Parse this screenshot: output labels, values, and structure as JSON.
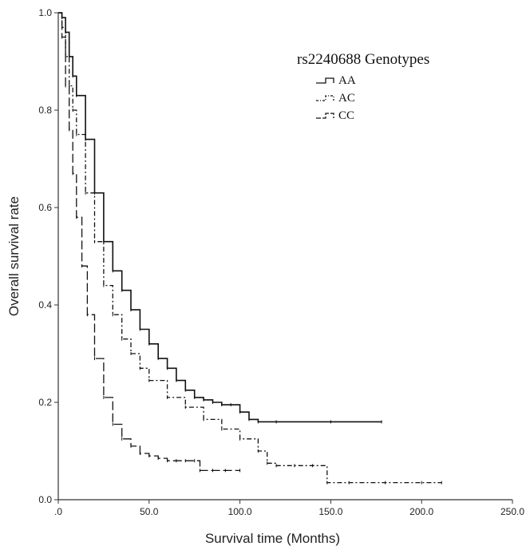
{
  "chart_data": {
    "type": "line",
    "title": "",
    "xlabel": "Survival time (Months)",
    "ylabel": "Overall survival rate",
    "xlim": [
      0,
      250
    ],
    "ylim": [
      0,
      1.0
    ],
    "x_ticks": [
      {
        "value": 0,
        "label": ".0"
      },
      {
        "value": 50,
        "label": "50.0"
      },
      {
        "value": 100,
        "label": "100.0"
      },
      {
        "value": 150,
        "label": "150.0"
      },
      {
        "value": 200,
        "label": "200.0"
      },
      {
        "value": 250,
        "label": "250.0"
      }
    ],
    "y_ticks": [
      {
        "value": 0,
        "label": "0.0"
      },
      {
        "value": 0.2,
        "label": "0.2"
      },
      {
        "value": 0.4,
        "label": "0.4"
      },
      {
        "value": 0.6,
        "label": "0.6"
      },
      {
        "value": 0.8,
        "label": "0.8"
      },
      {
        "value": 1.0,
        "label": "1.0"
      }
    ],
    "grid": false,
    "legend": {
      "title": "rs2240688 Genotypes",
      "placement": "top-right"
    },
    "series": [
      {
        "name": "AA",
        "dash": "solid",
        "x": [
          0,
          2,
          4,
          6,
          8,
          10,
          15,
          20,
          25,
          30,
          35,
          40,
          45,
          50,
          55,
          60,
          65,
          70,
          75,
          80,
          85,
          90,
          95,
          100,
          105,
          110,
          120,
          150,
          178
        ],
        "y": [
          1.0,
          0.99,
          0.96,
          0.91,
          0.87,
          0.83,
          0.74,
          0.63,
          0.53,
          0.47,
          0.43,
          0.39,
          0.35,
          0.32,
          0.29,
          0.27,
          0.245,
          0.225,
          0.21,
          0.205,
          0.2,
          0.195,
          0.195,
          0.18,
          0.165,
          0.16,
          0.16,
          0.16,
          0.16
        ]
      },
      {
        "name": "AC",
        "dash": "dash-dot",
        "x": [
          0,
          2,
          4,
          6,
          8,
          10,
          15,
          20,
          25,
          30,
          35,
          40,
          45,
          50,
          60,
          70,
          80,
          90,
          100,
          110,
          115,
          120,
          130,
          140,
          148,
          160,
          180,
          200,
          211
        ],
        "y": [
          1.0,
          0.97,
          0.91,
          0.85,
          0.8,
          0.75,
          0.63,
          0.53,
          0.44,
          0.38,
          0.33,
          0.3,
          0.27,
          0.245,
          0.21,
          0.19,
          0.165,
          0.145,
          0.125,
          0.1,
          0.075,
          0.07,
          0.07,
          0.07,
          0.035,
          0.035,
          0.035,
          0.035,
          0.035
        ]
      },
      {
        "name": "CC",
        "dash": "long-dash",
        "x": [
          0,
          2,
          4,
          6,
          8,
          10,
          13,
          16,
          20,
          25,
          30,
          35,
          40,
          45,
          50,
          55,
          60,
          65,
          70,
          75,
          78,
          85,
          92,
          100
        ],
        "y": [
          1.0,
          0.95,
          0.85,
          0.76,
          0.67,
          0.58,
          0.48,
          0.38,
          0.29,
          0.21,
          0.155,
          0.125,
          0.11,
          0.095,
          0.09,
          0.085,
          0.08,
          0.08,
          0.08,
          0.08,
          0.06,
          0.06,
          0.06,
          0.06
        ]
      }
    ]
  }
}
